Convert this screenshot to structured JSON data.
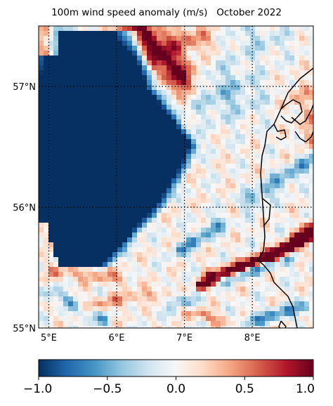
{
  "title": "100m wind speed anomaly (m/s)   October 2022",
  "map": {
    "lon_range": [
      4.85,
      8.9
    ],
    "lat_range": [
      55.0,
      57.5
    ],
    "lon_ticks": [
      {
        "value": 5,
        "label": "5°E"
      },
      {
        "value": 6,
        "label": "6°E"
      },
      {
        "value": 7,
        "label": "7°E"
      },
      {
        "value": 8,
        "label": "8°E"
      }
    ],
    "lat_ticks": [
      {
        "value": 55,
        "label": "55°N"
      },
      {
        "value": 56,
        "label": "56°N"
      },
      {
        "value": 57,
        "label": "57°N"
      }
    ],
    "gridlines": "dotted",
    "coastline": "Jutland west coast (Denmark)"
  },
  "colorbar": {
    "colormap": "RdBu_r",
    "min": -1.0,
    "max": 1.0,
    "ticks": [
      {
        "value": -1.0,
        "label": "−1.0"
      },
      {
        "value": -0.5,
        "label": "−0.5"
      },
      {
        "value": 0.0,
        "label": "0.0"
      },
      {
        "value": 0.5,
        "label": "0.5"
      },
      {
        "value": 1.0,
        "label": "1.0"
      }
    ],
    "colors": [
      "#053061",
      "#2166ac",
      "#4393c3",
      "#92c5de",
      "#d1e5f0",
      "#f7f7f7",
      "#fddbc7",
      "#f4a582",
      "#d6604d",
      "#b2182b",
      "#67001f"
    ]
  }
}
